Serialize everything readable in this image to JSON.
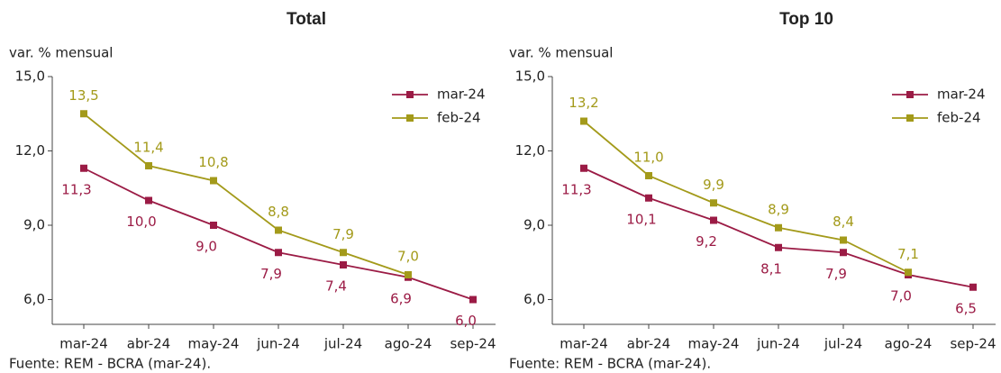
{
  "chart_data": [
    {
      "type": "line",
      "title": "Total",
      "ylabel": "var. % mensual",
      "source": "Fuente: REM - BCRA (mar-24).",
      "categories": [
        "mar-24",
        "abr-24",
        "may-24",
        "jun-24",
        "jul-24",
        "ago-24",
        "sep-24"
      ],
      "ylim": [
        5,
        15
      ],
      "yticks": [
        {
          "value": 6,
          "label": "6,0"
        },
        {
          "value": 9,
          "label": "9,0"
        },
        {
          "value": 12,
          "label": "12,0"
        },
        {
          "value": 15,
          "label": "15,0"
        }
      ],
      "legend": "upper right",
      "series": [
        {
          "name": "mar-24",
          "color": "#9b1b45",
          "values": [
            11.3,
            10.0,
            9.0,
            7.9,
            7.4,
            6.9,
            6.0
          ],
          "value_labels": [
            "11,3",
            "10,0",
            "9,0",
            "7,9",
            "7,4",
            "6,9",
            "6,0"
          ]
        },
        {
          "name": "feb-24",
          "color": "#a39a1a",
          "values": [
            13.5,
            11.4,
            10.8,
            8.8,
            7.9,
            7.0,
            null
          ],
          "value_labels": [
            "13,5",
            "11,4",
            "10,8",
            "8,8",
            "7,9",
            "7,0",
            null
          ]
        }
      ]
    },
    {
      "type": "line",
      "title": "Top 10",
      "ylabel": "var. % mensual",
      "source": "Fuente: REM - BCRA (mar-24).",
      "categories": [
        "mar-24",
        "abr-24",
        "may-24",
        "jun-24",
        "jul-24",
        "ago-24",
        "sep-24"
      ],
      "ylim": [
        5,
        15
      ],
      "yticks": [
        {
          "value": 6,
          "label": "6,0"
        },
        {
          "value": 9,
          "label": "9,0"
        },
        {
          "value": 12,
          "label": "12,0"
        },
        {
          "value": 15,
          "label": "15,0"
        }
      ],
      "legend": "upper right",
      "series": [
        {
          "name": "mar-24",
          "color": "#9b1b45",
          "values": [
            11.3,
            10.1,
            9.2,
            8.1,
            7.9,
            7.0,
            6.5
          ],
          "value_labels": [
            "11,3",
            "10,1",
            "9,2",
            "8,1",
            "7,9",
            "7,0",
            "6,5"
          ]
        },
        {
          "name": "feb-24",
          "color": "#a39a1a",
          "values": [
            13.2,
            11.0,
            9.9,
            8.9,
            8.4,
            7.1,
            null
          ],
          "value_labels": [
            "13,2",
            "11,0",
            "9,9",
            "8,9",
            "8,4",
            "7,1",
            null
          ]
        }
      ]
    }
  ]
}
